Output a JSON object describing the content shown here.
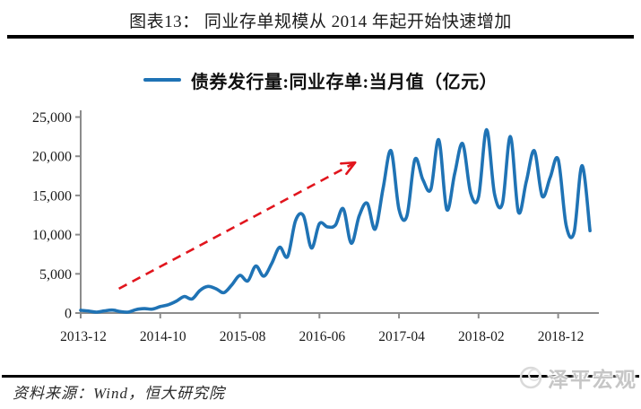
{
  "header": {
    "title": "图表13： 同业存单规模从 2014 年起开始快速增加"
  },
  "legend": {
    "label": "债券发行量:同业存单:当月值（亿元）"
  },
  "footer": {
    "source": "资料来源：Wind，恒大研究院",
    "logo_text": "泽平宏观"
  },
  "colors": {
    "line": "#1f73b5",
    "arrow": "#e1151d",
    "axis": "#8c8c8c",
    "tick_text": "#1a1a1a",
    "logo_gray": "#c6c6c6"
  },
  "chart_data": {
    "type": "line",
    "title": "图表13： 同业存单规模从 2014 年起开始快速增加",
    "series_name": "债券发行量:同业存单:当月值（亿元）",
    "ylabel": "",
    "xlabel": "",
    "ylim": [
      0,
      25000
    ],
    "grid": false,
    "legend_position": "top-center",
    "y_ticks": [
      0,
      5000,
      10000,
      15000,
      20000,
      25000
    ],
    "y_tick_labels": [
      "0",
      "5,000",
      "10,000",
      "15,000",
      "20,000",
      "25,000"
    ],
    "x_tick_labels": [
      "2013-12",
      "2014-10",
      "2015-08",
      "2016-06",
      "2017-04",
      "2018-02",
      "2018-12"
    ],
    "x_tick_month_indices": [
      0,
      10,
      20,
      30,
      40,
      50,
      60
    ],
    "x": [
      "2013-12",
      "2014-01",
      "2014-02",
      "2014-03",
      "2014-04",
      "2014-05",
      "2014-06",
      "2014-07",
      "2014-08",
      "2014-09",
      "2014-10",
      "2014-11",
      "2014-12",
      "2015-01",
      "2015-02",
      "2015-03",
      "2015-04",
      "2015-05",
      "2015-06",
      "2015-07",
      "2015-08",
      "2015-09",
      "2015-10",
      "2015-11",
      "2015-12",
      "2016-01",
      "2016-02",
      "2016-03",
      "2016-04",
      "2016-05",
      "2016-06",
      "2016-07",
      "2016-08",
      "2016-09",
      "2016-10",
      "2016-11",
      "2016-12",
      "2017-01",
      "2017-02",
      "2017-03",
      "2017-04",
      "2017-05",
      "2017-06",
      "2017-07",
      "2017-08",
      "2017-09",
      "2017-10",
      "2017-11",
      "2017-12",
      "2018-01",
      "2018-02",
      "2018-03",
      "2018-04",
      "2018-05",
      "2018-06",
      "2018-07",
      "2018-08",
      "2018-09",
      "2018-10",
      "2018-11",
      "2018-12",
      "2019-01",
      "2019-02",
      "2019-03",
      "2019-04"
    ],
    "values": [
      350,
      250,
      120,
      280,
      380,
      180,
      130,
      450,
      560,
      500,
      820,
      1050,
      1500,
      2100,
      1800,
      2900,
      3400,
      3100,
      2600,
      3600,
      4800,
      4100,
      6000,
      4700,
      6300,
      8400,
      7200,
      11800,
      12400,
      8300,
      11400,
      11000,
      11200,
      13300,
      8900,
      12400,
      14000,
      10700,
      15900,
      20700,
      13200,
      12400,
      19600,
      17000,
      15800,
      22100,
      13200,
      17800,
      21600,
      15300,
      14800,
      23400,
      15200,
      14000,
      22500,
      12900,
      16800,
      20700,
      14900,
      17300,
      19600,
      11200,
      10300,
      18800,
      10500
    ],
    "annotation": {
      "type": "dashed-arrow",
      "from": {
        "month_index": 4.8,
        "value": 3100
      },
      "to": {
        "month_index": 34.5,
        "value": 19200
      }
    }
  }
}
